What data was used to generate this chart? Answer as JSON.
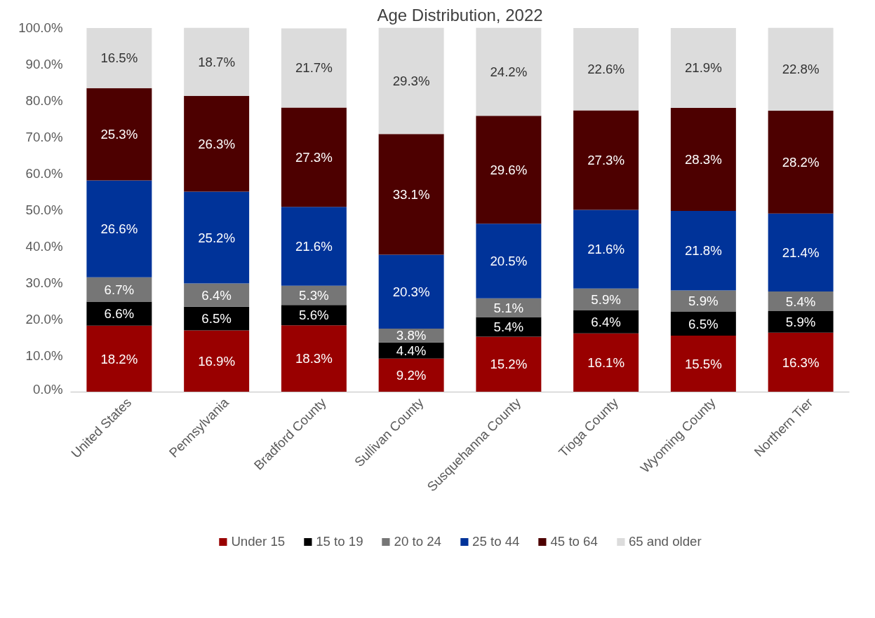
{
  "chart_data": {
    "type": "bar",
    "stacked": true,
    "title": "Age Distribution, 2022",
    "categories": [
      "United States",
      "Pennsylvania",
      "Bradford County",
      "Sullivan County",
      "Susquehanna County",
      "Tioga County",
      "Wyoming County",
      "Northern Tier"
    ],
    "series": [
      {
        "name": "Under 15",
        "color": "#990000",
        "values": [
          18.2,
          16.9,
          18.3,
          9.2,
          15.2,
          16.1,
          15.5,
          16.3
        ],
        "value_labels": [
          "18.2%",
          "16.9%",
          "18.3%",
          "9.2%",
          "15.2%",
          "16.1%",
          "15.5%",
          "16.3%"
        ]
      },
      {
        "name": "15 to 19",
        "color": "#000000",
        "values": [
          6.6,
          6.5,
          5.6,
          4.4,
          5.4,
          6.4,
          6.5,
          5.9
        ],
        "value_labels": [
          "6.6%",
          "6.5%",
          "5.6%",
          "4.4%",
          "5.4%",
          "6.4%",
          "6.5%",
          "5.9%"
        ]
      },
      {
        "name": "20 to 24",
        "color": "#767676",
        "values": [
          6.7,
          6.4,
          5.3,
          3.8,
          5.1,
          5.9,
          5.9,
          5.4
        ],
        "value_labels": [
          "6.7%",
          "6.4%",
          "5.3%",
          "3.8%",
          "5.1%",
          "5.9%",
          "5.9%",
          "5.4%"
        ]
      },
      {
        "name": "25 to 44",
        "color": "#003399",
        "values": [
          26.6,
          25.2,
          21.6,
          20.3,
          20.5,
          21.6,
          21.8,
          21.4
        ],
        "value_labels": [
          "26.6%",
          "25.2%",
          "21.6%",
          "20.3%",
          "20.5%",
          "21.6%",
          "21.8%",
          "21.4%"
        ]
      },
      {
        "name": "45 to 64",
        "color": "#4d0000",
        "values": [
          25.3,
          26.3,
          27.3,
          33.1,
          29.6,
          27.3,
          28.3,
          28.2
        ],
        "value_labels": [
          "25.3%",
          "26.3%",
          "27.3%",
          "33.1%",
          "29.6%",
          "27.3%",
          "28.3%",
          "28.2%"
        ]
      },
      {
        "name": "65 and older",
        "color": "#dcdcdc",
        "values": [
          16.5,
          18.7,
          21.7,
          29.3,
          24.2,
          22.6,
          21.9,
          22.8
        ],
        "value_labels": [
          "16.5%",
          "18.7%",
          "21.7%",
          "29.3%",
          "24.2%",
          "22.6%",
          "21.9%",
          "22.8%"
        ]
      }
    ],
    "ylim": [
      0,
      100
    ],
    "yticks": [
      {
        "value": 0,
        "label": "0.0%"
      },
      {
        "value": 10,
        "label": "10.0%"
      },
      {
        "value": 20,
        "label": "20.0%"
      },
      {
        "value": 30,
        "label": "30.0%"
      },
      {
        "value": 40,
        "label": "40.0%"
      },
      {
        "value": 50,
        "label": "50.0%"
      },
      {
        "value": 60,
        "label": "60.0%"
      },
      {
        "value": 70,
        "label": "70.0%"
      },
      {
        "value": 80,
        "label": "80.0%"
      },
      {
        "value": 90,
        "label": "90.0%"
      },
      {
        "value": 100,
        "label": "100.0%"
      }
    ],
    "grid": false,
    "legend": "bottom"
  }
}
